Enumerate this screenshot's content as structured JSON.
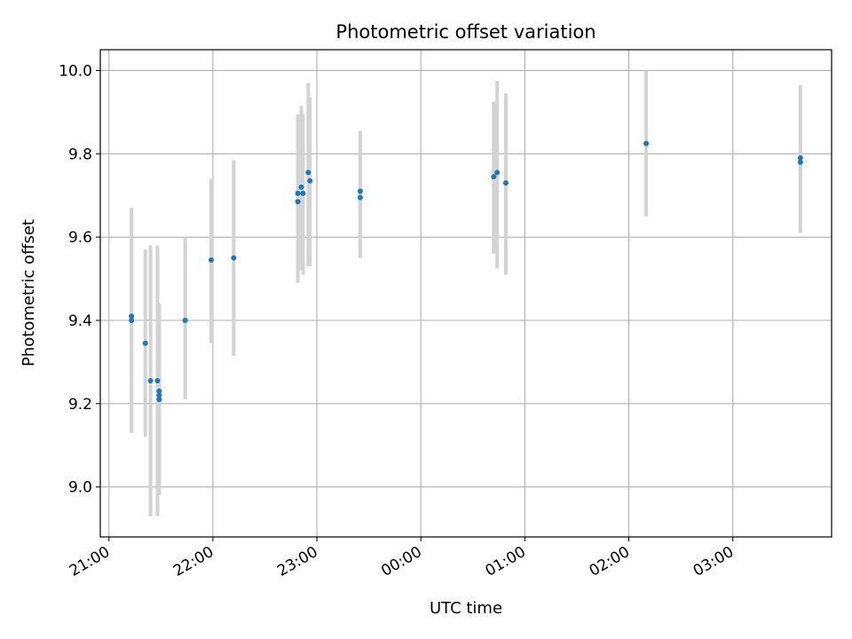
{
  "chart_data": {
    "type": "scatter",
    "title": "Photometric offset variation",
    "xlabel": "UTC time",
    "ylabel": "Photometric offset",
    "x_unit": "UTC",
    "x_range": [
      "20:55",
      "03:57"
    ],
    "x_ticks": [
      "21:00",
      "22:00",
      "23:00",
      "00:00",
      "01:00",
      "02:00",
      "03:00"
    ],
    "ylim": [
      8.88,
      10.05
    ],
    "y_ticks": [
      "9.0",
      "9.2",
      "9.4",
      "9.6",
      "9.8",
      "10.0"
    ],
    "grid": true,
    "colors": {
      "points": "#1f77b4",
      "error_bars": "#d3d3d3",
      "grid": "#b0b0b0"
    },
    "series": [
      {
        "points": [
          {
            "x": "21:13",
            "y": 9.41,
            "ylo": 9.13,
            "yhi": 9.67
          },
          {
            "x": "21:13",
            "y": 9.4,
            "ylo": 9.13,
            "yhi": 9.66
          },
          {
            "x": "21:21",
            "y": 9.345,
            "ylo": 9.12,
            "yhi": 9.57
          },
          {
            "x": "21:24",
            "y": 9.255,
            "ylo": 8.93,
            "yhi": 9.58
          },
          {
            "x": "21:28",
            "y": 9.255,
            "ylo": 8.93,
            "yhi": 9.58
          },
          {
            "x": "21:29",
            "y": 9.23,
            "ylo": 8.98,
            "yhi": 9.44
          },
          {
            "x": "21:29",
            "y": 9.21,
            "ylo": 9.02,
            "yhi": 9.44
          },
          {
            "x": "21:29",
            "y": 9.22,
            "ylo": 9.0,
            "yhi": 9.44
          },
          {
            "x": "21:44",
            "y": 9.4,
            "ylo": 9.21,
            "yhi": 9.6
          },
          {
            "x": "21:59",
            "y": 9.545,
            "ylo": 9.345,
            "yhi": 9.74
          },
          {
            "x": "22:12",
            "y": 9.55,
            "ylo": 9.315,
            "yhi": 9.785
          },
          {
            "x": "22:49",
            "y": 9.705,
            "ylo": 9.49,
            "yhi": 9.895
          },
          {
            "x": "22:49",
            "y": 9.685,
            "ylo": 9.52,
            "yhi": 9.895
          },
          {
            "x": "22:51",
            "y": 9.72,
            "ylo": 9.52,
            "yhi": 9.915
          },
          {
            "x": "22:52",
            "y": 9.705,
            "ylo": 9.51,
            "yhi": 9.895
          },
          {
            "x": "22:55",
            "y": 9.755,
            "ylo": 9.53,
            "yhi": 9.97
          },
          {
            "x": "22:56",
            "y": 9.735,
            "ylo": 9.53,
            "yhi": 9.935
          },
          {
            "x": "23:25",
            "y": 9.71,
            "ylo": 9.55,
            "yhi": 9.855
          },
          {
            "x": "23:25",
            "y": 9.695,
            "ylo": 9.55,
            "yhi": 9.84
          },
          {
            "x": "00:42",
            "y": 9.745,
            "ylo": 9.56,
            "yhi": 9.925
          },
          {
            "x": "00:44",
            "y": 9.755,
            "ylo": 9.525,
            "yhi": 9.975
          },
          {
            "x": "00:49",
            "y": 9.73,
            "ylo": 9.51,
            "yhi": 9.945
          },
          {
            "x": "02:10",
            "y": 9.825,
            "ylo": 9.65,
            "yhi": 10.0
          },
          {
            "x": "03:39",
            "y": 9.79,
            "ylo": 9.61,
            "yhi": 9.965
          },
          {
            "x": "03:39",
            "y": 9.78,
            "ylo": 9.61,
            "yhi": 9.955
          }
        ]
      }
    ]
  }
}
